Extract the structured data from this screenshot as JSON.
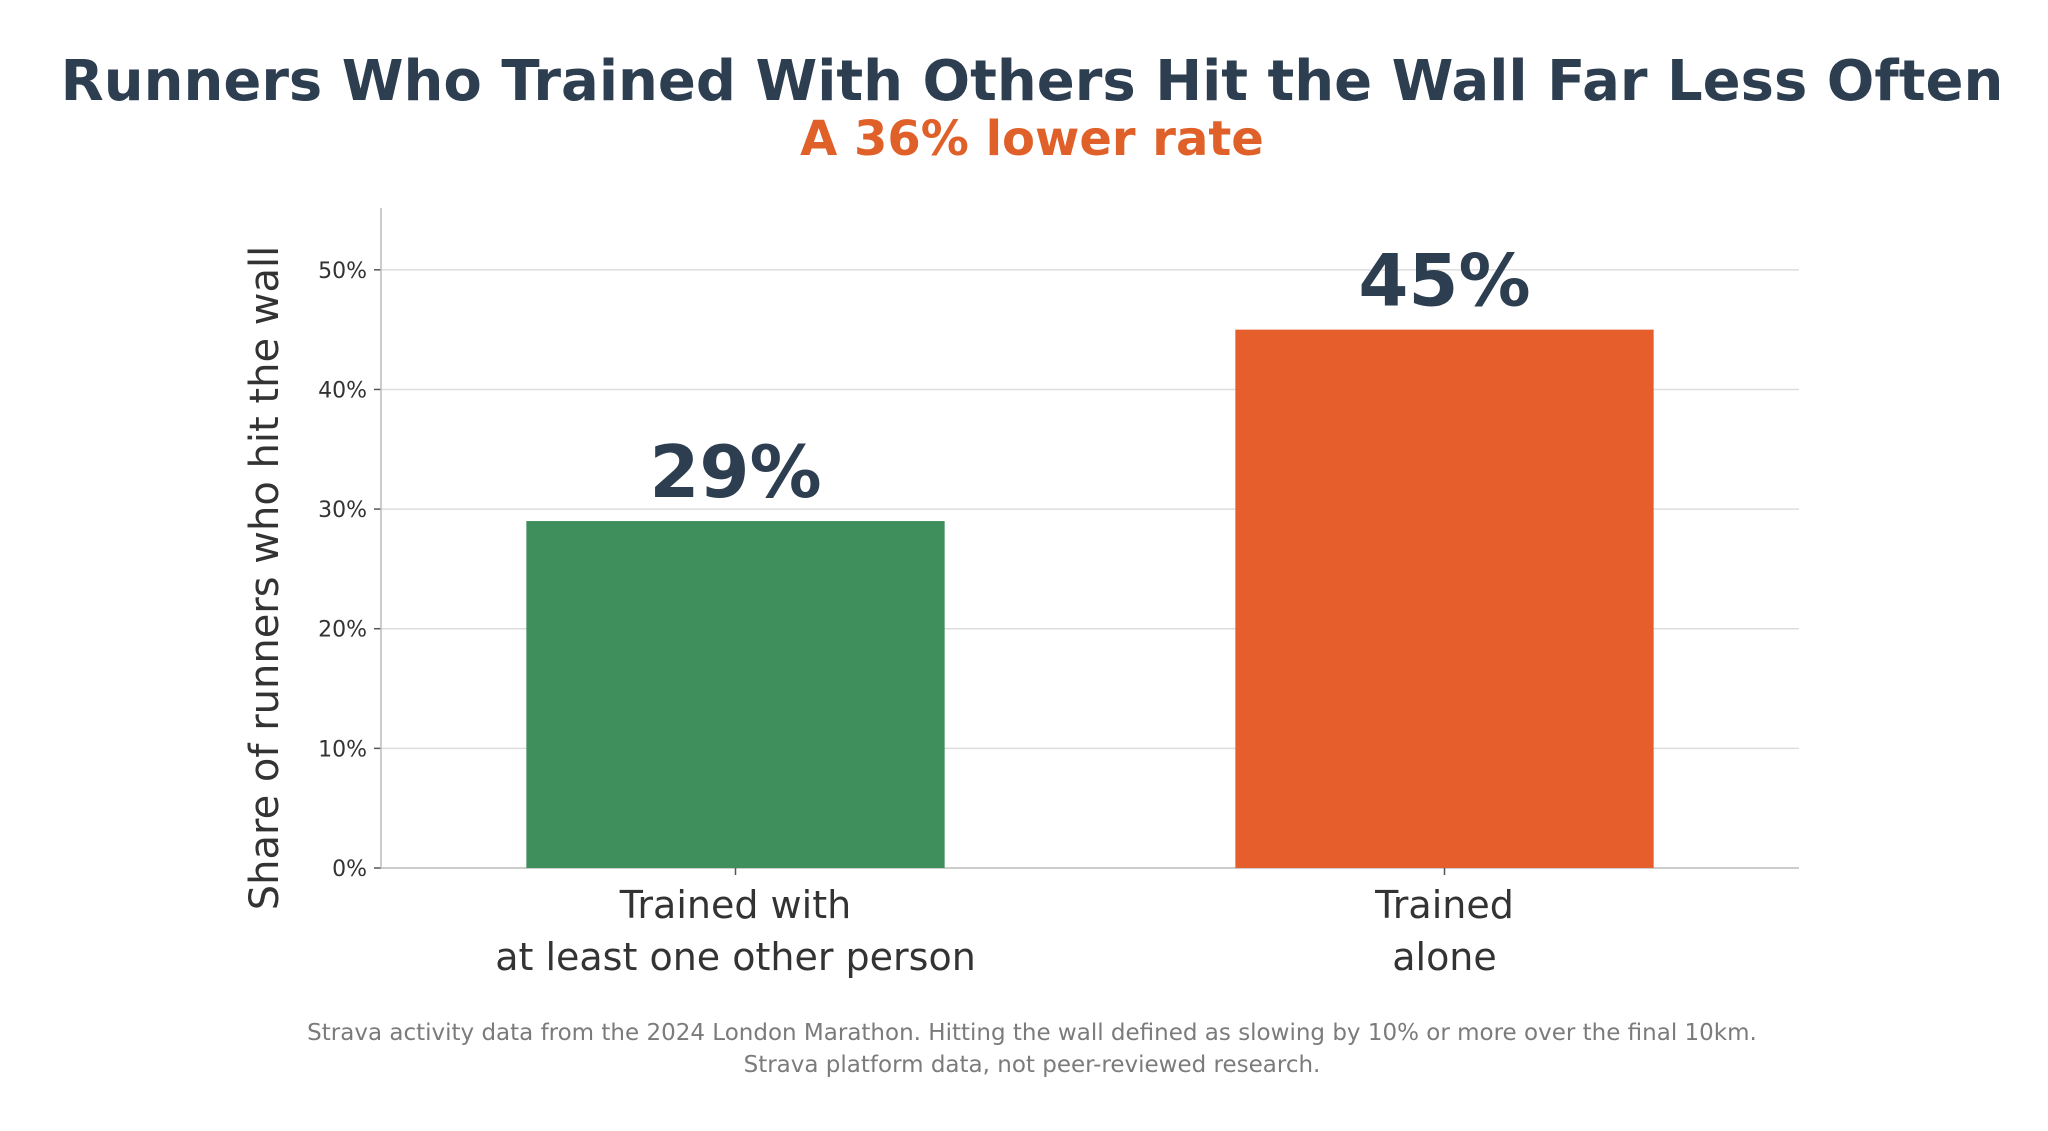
{
  "chart_data": {
    "type": "bar",
    "title": "Runners Who Trained With Others Hit the Wall Far Less Often",
    "subtitle": "A 36% lower rate",
    "ylabel": "Share of runners who hit the wall",
    "xlabel": "",
    "ylim": [
      0,
      55
    ],
    "yticks": [
      0,
      10,
      20,
      30,
      40,
      50
    ],
    "ytick_labels": [
      "0%",
      "10%",
      "20%",
      "30%",
      "40%",
      "50%"
    ],
    "grid": true,
    "categories": [
      [
        "Trained with",
        "at least one other person"
      ],
      [
        "Trained",
        "alone"
      ]
    ],
    "values": [
      29,
      45
    ],
    "data_labels": [
      "29%",
      "45%"
    ],
    "colors": [
      "#3f8f5c",
      "#e55e2b"
    ],
    "subtitle_color": "#e0602a",
    "footnote": [
      "Strava activity data from the 2024 London Marathon. Hitting the wall defined as slowing by 10% or more over the final 10km.",
      "Strava platform data, not peer-reviewed research."
    ]
  }
}
